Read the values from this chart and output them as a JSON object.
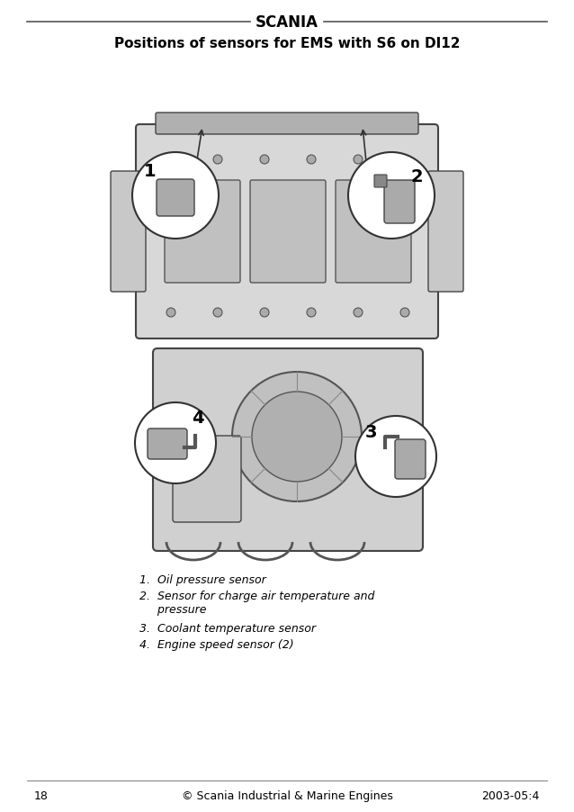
{
  "title": "Positions of sensors for EMS with S6 on DI12",
  "header_brand": "SCANIA",
  "footer_page": "18",
  "footer_center": "© Scania Industrial & Marine Engines",
  "footer_right": "2003-05:4",
  "legend": [
    "1.  Oil pressure sensor",
    "2.  Sensor for charge air temperature and\n    pressure",
    "3.  Coolant temperature sensor",
    "4.  Engine speed sensor (2)"
  ],
  "bg_color": "#ffffff",
  "text_color": "#000000",
  "line_color": "#888888",
  "diagram_color": "#cccccc",
  "engine_color": "#b0b0b0"
}
